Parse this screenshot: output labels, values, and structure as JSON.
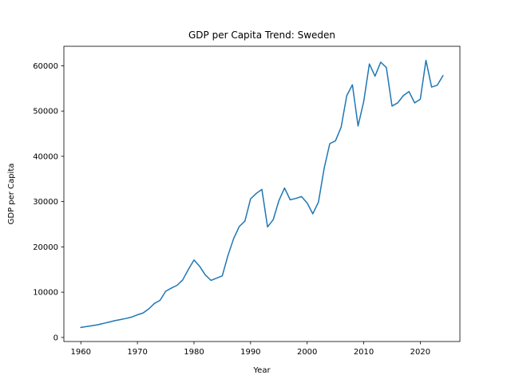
{
  "chart_data": {
    "type": "line",
    "title": "GDP per Capita Trend: Sweden",
    "xlabel": "Year",
    "ylabel": "GDP per Capita",
    "xlim": [
      1957,
      2027
    ],
    "ylim": [
      -900,
      64300
    ],
    "xticks": [
      1960,
      1970,
      1980,
      1990,
      2000,
      2010,
      2020
    ],
    "yticks": [
      0,
      10000,
      20000,
      30000,
      40000,
      50000,
      60000
    ],
    "grid": false,
    "legend": "none",
    "line_color": "#1f77b4",
    "x": [
      1960,
      1961,
      1962,
      1963,
      1964,
      1965,
      1966,
      1967,
      1968,
      1969,
      1970,
      1971,
      1972,
      1973,
      1974,
      1975,
      1976,
      1977,
      1978,
      1979,
      1980,
      1981,
      1982,
      1983,
      1984,
      1985,
      1986,
      1987,
      1988,
      1989,
      1990,
      1991,
      1992,
      1993,
      1994,
      1995,
      1996,
      1997,
      1998,
      1999,
      2000,
      2001,
      2002,
      2003,
      2004,
      2005,
      2006,
      2007,
      2008,
      2009,
      2010,
      2011,
      2012,
      2013,
      2014,
      2015,
      2016,
      2017,
      2018,
      2019,
      2020,
      2021,
      2022,
      2023,
      2024
    ],
    "series": [
      {
        "values": [
          2200,
          2400,
          2600,
          2800,
          3100,
          3400,
          3700,
          3950,
          4200,
          4500,
          5000,
          5400,
          6300,
          7500,
          8200,
          10200,
          10900,
          11500,
          12700,
          15000,
          17100,
          15700,
          13800,
          12600,
          13100,
          13600,
          18100,
          21800,
          24500,
          25700,
          30600,
          31800,
          32700,
          24400,
          26000,
          30200,
          33000,
          30400,
          30700,
          31100,
          29700,
          27300,
          29900,
          37300,
          42800,
          43400,
          46400,
          53400,
          55800,
          46700,
          52100,
          60400,
          57700,
          60800,
          59600,
          51100,
          51800,
          53400,
          54300,
          51800,
          52600,
          61200,
          55300,
          55700,
          57800
        ]
      }
    ]
  }
}
